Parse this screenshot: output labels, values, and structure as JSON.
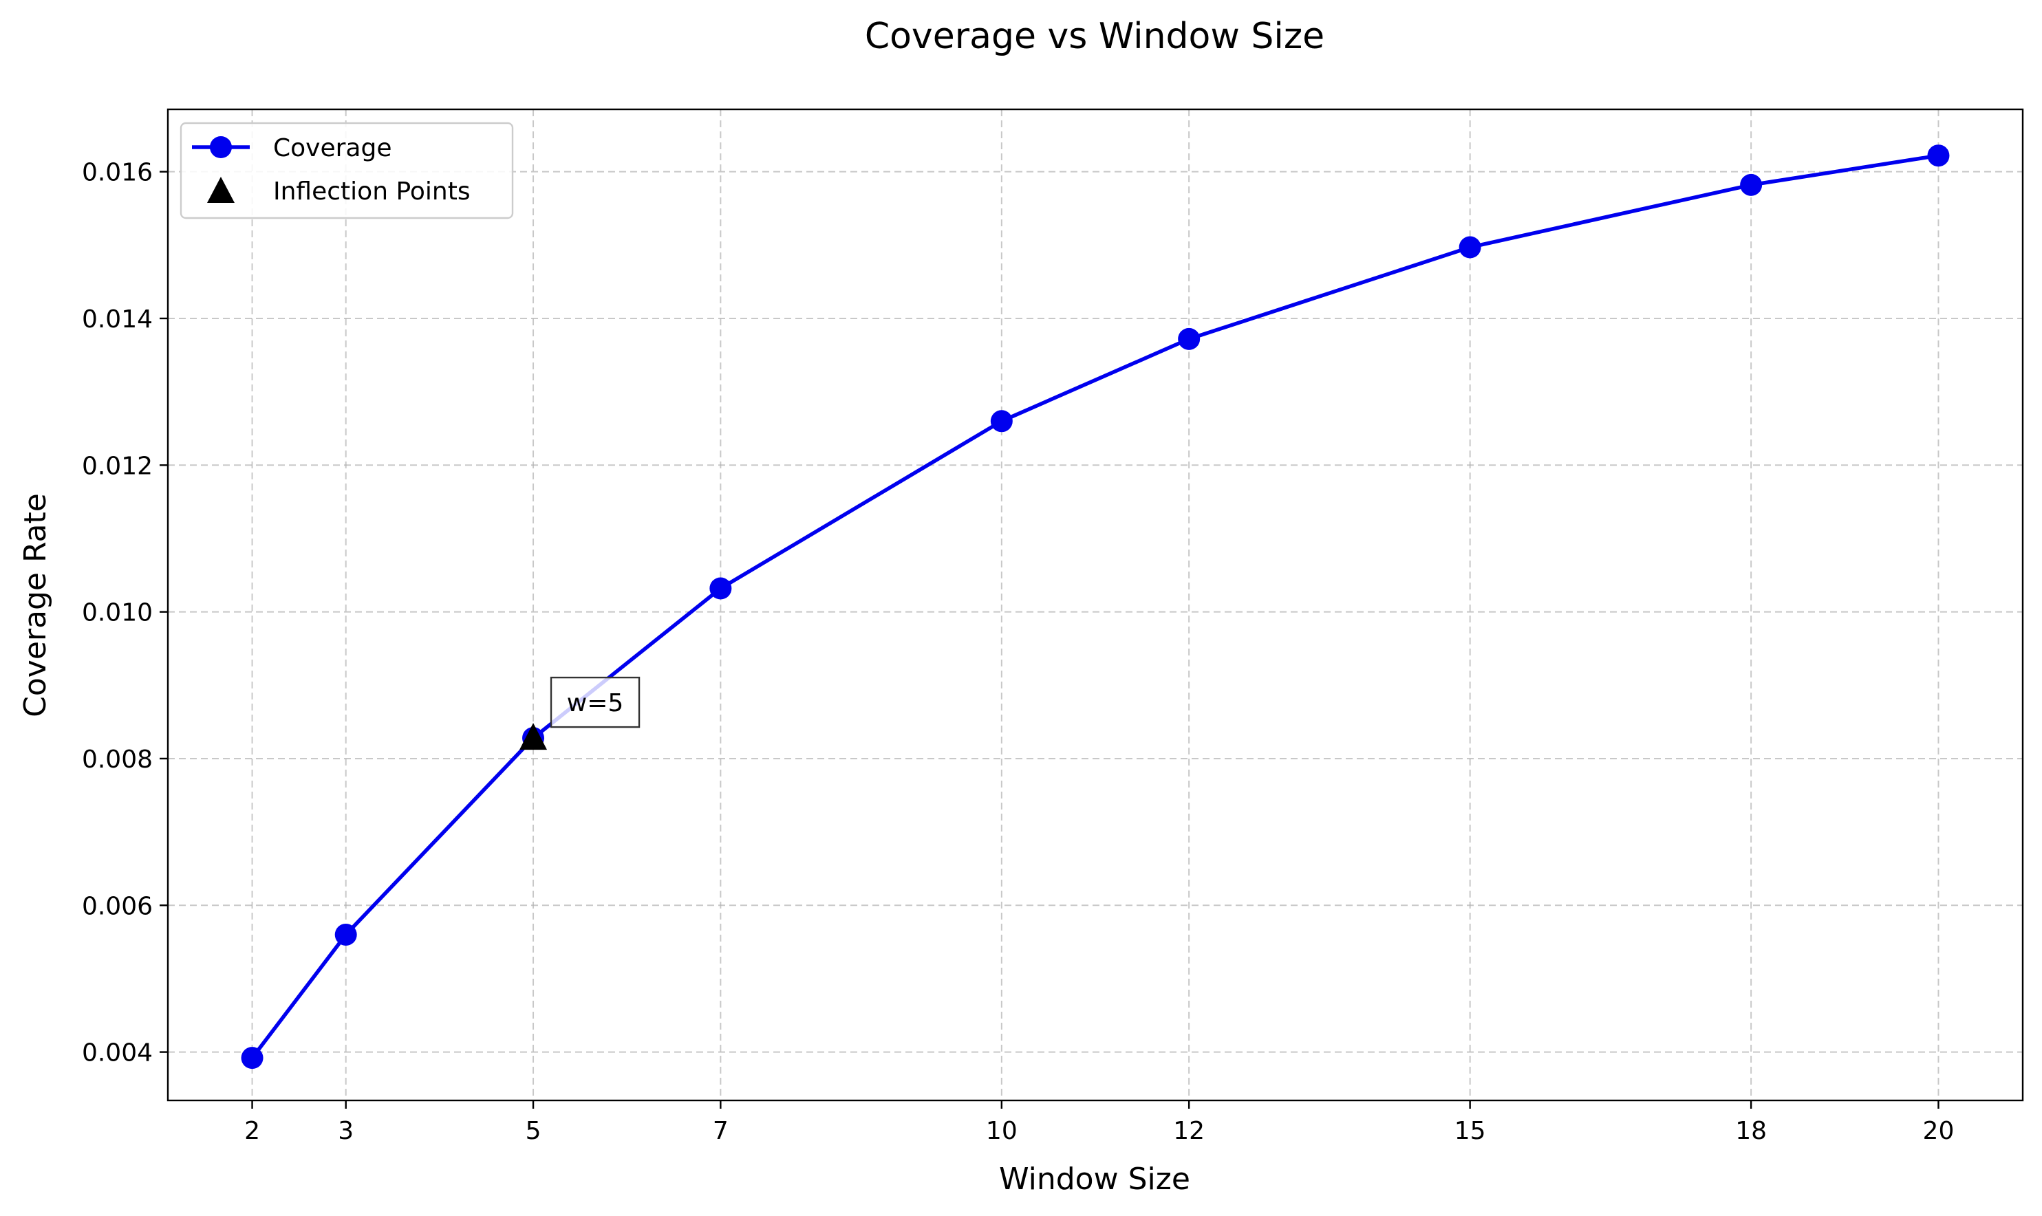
{
  "chart_data": {
    "type": "line",
    "title": "Coverage vs Window Size",
    "xlabel": "Window Size",
    "ylabel": "Coverage Rate",
    "x": [
      2,
      3,
      5,
      7,
      10,
      12,
      15,
      18,
      20
    ],
    "xticks": [
      2,
      3,
      5,
      7,
      10,
      12,
      15,
      18,
      20
    ],
    "xtick_labels": [
      "2",
      "3",
      "5",
      "7",
      "10",
      "12",
      "15",
      "18",
      "20"
    ],
    "xlim": [
      1.1,
      20.9
    ],
    "yticks": [
      0.004,
      0.006,
      0.008,
      0.01,
      0.012,
      0.014,
      0.016
    ],
    "ytick_labels": [
      "0.004",
      "0.006",
      "0.008",
      "0.010",
      "0.012",
      "0.014",
      "0.016"
    ],
    "ylim": [
      0.00334,
      0.01685
    ],
    "grid": true,
    "legend_position": "upper-left",
    "series": [
      {
        "name": "Coverage",
        "color": "#0000ee",
        "marker": "circle",
        "values": [
          0.00392,
          0.0056,
          0.00828,
          0.01032,
          0.0126,
          0.01372,
          0.01497,
          0.01582,
          0.01622
        ]
      }
    ],
    "inflection_points": {
      "name": "Inflection Points",
      "color": "#000000",
      "marker": "triangle",
      "x": [
        5
      ],
      "y": [
        0.00828
      ]
    },
    "annotations": [
      {
        "text": "w=5",
        "x": 5,
        "y": 0.00828
      }
    ]
  }
}
